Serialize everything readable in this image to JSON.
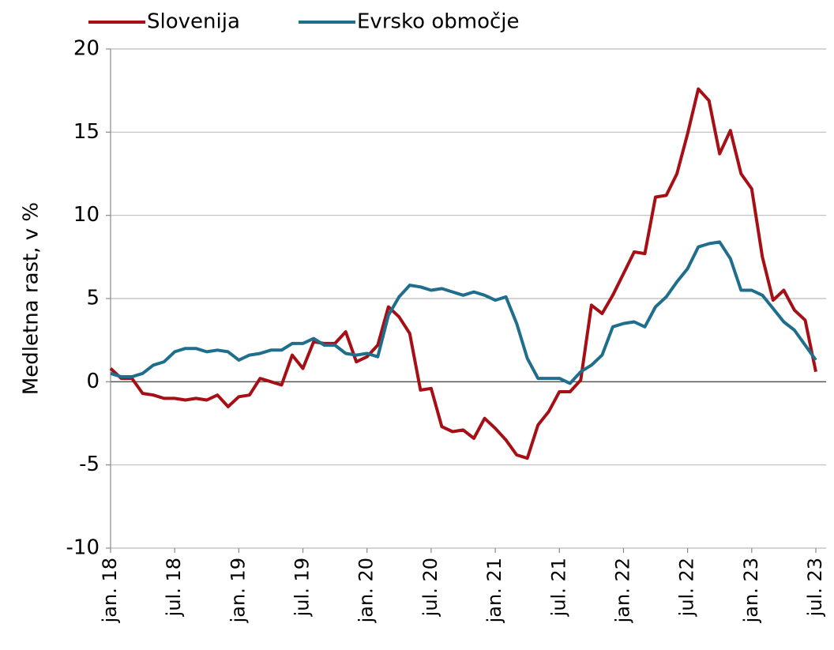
{
  "chart_data": {
    "type": "line",
    "y_label": "Medletna rast, v %",
    "categories": [
      "jan. 18",
      null,
      null,
      null,
      null,
      null,
      "jul. 18",
      null,
      null,
      null,
      null,
      null,
      "jan. 19",
      null,
      null,
      null,
      null,
      null,
      "jul. 19",
      null,
      null,
      null,
      null,
      null,
      "jan. 20",
      null,
      null,
      null,
      null,
      null,
      "jul. 20",
      null,
      null,
      null,
      null,
      null,
      "jan. 21",
      null,
      null,
      null,
      null,
      null,
      "jul. 21",
      null,
      null,
      null,
      null,
      null,
      "jan. 22",
      null,
      null,
      null,
      null,
      null,
      "jul. 22",
      null,
      null,
      null,
      null,
      null,
      "jan. 23",
      null,
      null,
      null,
      null,
      null,
      "jul. 23"
    ],
    "series": [
      {
        "name": "Slovenija",
        "color": "#a50f15",
        "values": [
          0.8,
          0.2,
          0.2,
          -0.7,
          -0.8,
          -1.0,
          -1.0,
          -1.1,
          -1.0,
          -1.1,
          -0.8,
          -1.5,
          -0.9,
          -0.8,
          0.2,
          0.0,
          -0.2,
          1.6,
          0.8,
          2.4,
          2.3,
          2.3,
          3.0,
          1.2,
          1.5,
          2.2,
          4.5,
          3.9,
          2.9,
          -0.5,
          -0.4,
          -2.7,
          -3.0,
          -2.9,
          -3.4,
          -2.2,
          -2.8,
          -3.5,
          -4.4,
          -4.6,
          -2.6,
          -1.8,
          -0.6,
          -0.6,
          0.1,
          4.6,
          4.1,
          5.2,
          6.5,
          7.8,
          7.7,
          11.1,
          11.2,
          12.5,
          14.9,
          17.6,
          16.9,
          13.7,
          15.1,
          12.5,
          11.6,
          7.5,
          4.9,
          5.5,
          4.3,
          3.7,
          0.6
        ]
      },
      {
        "name": "Evrsko območje",
        "color": "#1f6e8c",
        "values": [
          0.5,
          0.3,
          0.3,
          0.5,
          1.0,
          1.2,
          1.8,
          2.0,
          2.0,
          1.8,
          1.9,
          1.8,
          1.3,
          1.6,
          1.7,
          1.9,
          1.9,
          2.3,
          2.3,
          2.6,
          2.2,
          2.2,
          1.7,
          1.6,
          1.7,
          1.5,
          4.0,
          5.1,
          5.8,
          5.7,
          5.5,
          5.6,
          5.4,
          5.2,
          5.4,
          5.2,
          4.9,
          5.1,
          3.5,
          1.4,
          0.2,
          0.2,
          0.2,
          -0.1,
          0.6,
          1.0,
          1.6,
          3.3,
          3.5,
          3.6,
          3.3,
          4.5,
          5.1,
          6.0,
          6.8,
          8.1,
          8.3,
          8.4,
          7.4,
          5.5,
          5.5,
          5.2,
          4.4,
          3.6,
          3.1,
          2.2,
          1.3
        ]
      }
    ],
    "ylim": [
      -10,
      20
    ],
    "yticks": [
      -10,
      -5,
      0,
      5,
      10,
      15,
      20
    ],
    "grid": true
  }
}
